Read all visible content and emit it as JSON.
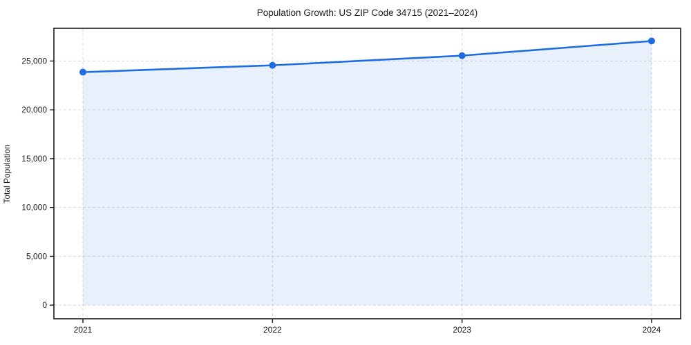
{
  "figure": {
    "title": "Population Growth: US ZIP Code 34715 (2021–2024)"
  },
  "chart_data": {
    "type": "line",
    "title": "Population Growth: US ZIP Code 34715 (2021–2024)",
    "xlabel": "",
    "ylabel": "Total Population",
    "x": [
      "2021",
      "2022",
      "2023",
      "2024"
    ],
    "series": [
      {
        "name": "Total Population",
        "values": [
          23860,
          24560,
          25550,
          27050
        ]
      }
    ],
    "area_fill": true,
    "area_baseline": 0,
    "markers": true,
    "grid": true,
    "grid_style": "dashed",
    "legend_position": "none",
    "ylim": [
      -1400,
      28350
    ],
    "yticks": {
      "values": [
        0,
        5000,
        10000,
        15000,
        20000,
        25000
      ],
      "labels": [
        "0",
        "5,000",
        "10,000",
        "15,000",
        "20,000",
        "25,000"
      ]
    },
    "colors": {
      "line": "#1d6de0",
      "marker": "#1d6de0",
      "area_fill_rgba": "rgba(29, 109, 224, 0.10)",
      "grid": "#d6d6d6",
      "spine": "#1a1a1a",
      "tick_text": "#1a1a1a",
      "background": "#ffffff"
    }
  }
}
